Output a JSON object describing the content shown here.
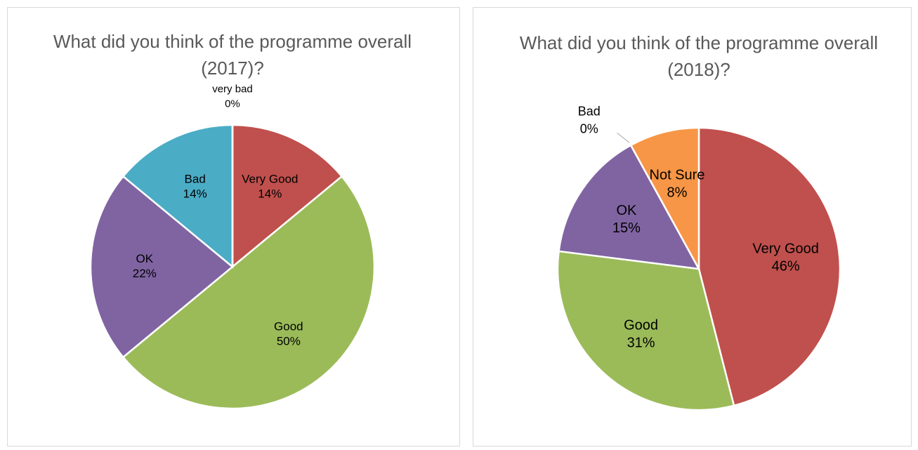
{
  "chart_data": [
    {
      "type": "pie",
      "title": "What did you think of the programme overall (2017)?",
      "categories": [
        "Very Good",
        "Good",
        "OK",
        "Bad",
        "very bad"
      ],
      "values": [
        14,
        50,
        22,
        14,
        0
      ],
      "value_labels": [
        "14%",
        "50%",
        "22%",
        "14%",
        "0%"
      ],
      "colors": [
        "#c0504d",
        "#9bbb59",
        "#8064a2",
        "#4bacc6",
        "#f79646"
      ]
    },
    {
      "type": "pie",
      "title": "What did you think of the programme overall (2018)?",
      "categories": [
        "Very Good",
        "Good",
        "OK",
        "Bad",
        "Not Sure"
      ],
      "values": [
        46,
        31,
        15,
        0,
        8
      ],
      "value_labels": [
        "46%",
        "31%",
        "15%",
        "0%",
        "8%"
      ],
      "colors": [
        "#c0504d",
        "#9bbb59",
        "#8064a2",
        "#4bacc6",
        "#f79646"
      ]
    }
  ]
}
